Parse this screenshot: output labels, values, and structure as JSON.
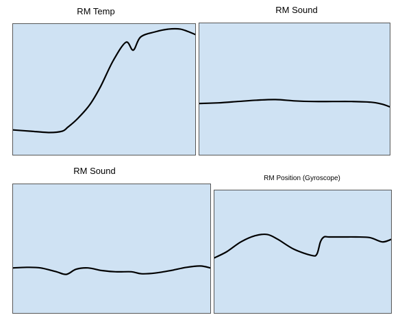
{
  "colors": {
    "plot_background": "#cfe2f3",
    "line": "#000000",
    "border": "#555555"
  },
  "chart_data": [
    {
      "type": "line",
      "title": "RM Temp",
      "xlabel": "",
      "ylabel": "",
      "grid": false,
      "xlim": [
        0,
        1
      ],
      "ylim": [
        0,
        1
      ],
      "series": [
        {
          "x": [
            0,
            0.1,
            0.2,
            0.27,
            0.3,
            0.35,
            0.42,
            0.48,
            0.55,
            0.62,
            0.66,
            0.7,
            0.78,
            0.85,
            0.92,
            1.0
          ],
          "y": [
            0.19,
            0.18,
            0.17,
            0.18,
            0.21,
            0.27,
            0.38,
            0.52,
            0.72,
            0.86,
            0.8,
            0.9,
            0.94,
            0.96,
            0.96,
            0.92
          ]
        }
      ]
    },
    {
      "type": "line",
      "title": "RM Sound",
      "xlabel": "",
      "ylabel": "",
      "grid": false,
      "xlim": [
        0,
        1
      ],
      "ylim": [
        0,
        1
      ],
      "series": [
        {
          "x": [
            0,
            0.1,
            0.2,
            0.3,
            0.4,
            0.5,
            0.6,
            0.7,
            0.8,
            0.9,
            0.96,
            1.0
          ],
          "y": [
            0.39,
            0.395,
            0.405,
            0.415,
            0.42,
            0.41,
            0.405,
            0.405,
            0.405,
            0.4,
            0.385,
            0.365
          ]
        }
      ]
    },
    {
      "type": "line",
      "title": "RM Sound",
      "xlabel": "",
      "ylabel": "",
      "grid": false,
      "xlim": [
        0,
        1
      ],
      "ylim": [
        0,
        1
      ],
      "series": [
        {
          "x": [
            0,
            0.07,
            0.14,
            0.22,
            0.27,
            0.32,
            0.38,
            0.45,
            0.52,
            0.6,
            0.65,
            0.72,
            0.8,
            0.88,
            0.95,
            1.0
          ],
          "y": [
            0.35,
            0.355,
            0.35,
            0.32,
            0.3,
            0.34,
            0.35,
            0.33,
            0.32,
            0.32,
            0.305,
            0.31,
            0.33,
            0.355,
            0.365,
            0.35
          ]
        }
      ]
    },
    {
      "type": "line",
      "title": "RM Position (Gyroscope)",
      "xlabel": "",
      "ylabel": "",
      "grid": false,
      "xlim": [
        0,
        1
      ],
      "ylim": [
        0,
        1
      ],
      "series": [
        {
          "x": [
            0,
            0.07,
            0.15,
            0.23,
            0.3,
            0.36,
            0.45,
            0.55,
            0.58,
            0.6,
            0.62,
            0.65,
            0.72,
            0.8,
            0.88,
            0.95,
            1.0
          ],
          "y": [
            0.45,
            0.5,
            0.58,
            0.63,
            0.64,
            0.6,
            0.52,
            0.47,
            0.48,
            0.58,
            0.62,
            0.62,
            0.62,
            0.62,
            0.615,
            0.58,
            0.6
          ]
        }
      ]
    }
  ]
}
